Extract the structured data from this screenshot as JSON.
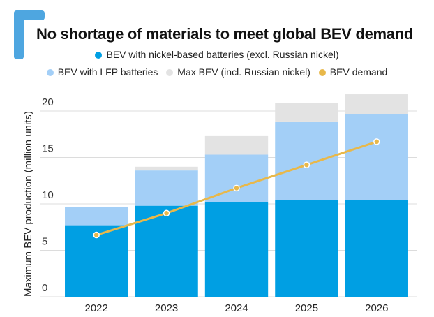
{
  "chart_data": {
    "type": "bar",
    "title": "No shortage of materials to meet global BEV demand",
    "ylabel": "Maximum BEV production (million units)",
    "xlabel": "",
    "categories": [
      "2022",
      "2023",
      "2024",
      "2025",
      "2026"
    ],
    "ylim": [
      0,
      22
    ],
    "yticks": [
      0,
      5,
      10,
      15,
      20
    ],
    "grid": true,
    "legend_placement": "top",
    "stacked": true,
    "series": [
      {
        "name": "BEV with nickel-based batteries (excl. Russian nickel)",
        "type": "bar",
        "color": "#009fe3",
        "values": [
          7.7,
          9.8,
          10.2,
          10.4,
          10.4
        ]
      },
      {
        "name": "BEV with LFP batteries",
        "type": "bar",
        "color": "#a3cff7",
        "values": [
          2.0,
          3.8,
          5.1,
          8.4,
          9.3
        ]
      },
      {
        "name": "Max BEV (incl. Russian nickel)",
        "type": "bar",
        "color": "#e3e3e3",
        "values": [
          0.0,
          0.4,
          2.0,
          2.1,
          2.1
        ]
      },
      {
        "name": "BEV demand",
        "type": "line",
        "color": "#e8b84a",
        "values": [
          6.65,
          9.0,
          11.7,
          14.2,
          16.7
        ]
      }
    ]
  }
}
